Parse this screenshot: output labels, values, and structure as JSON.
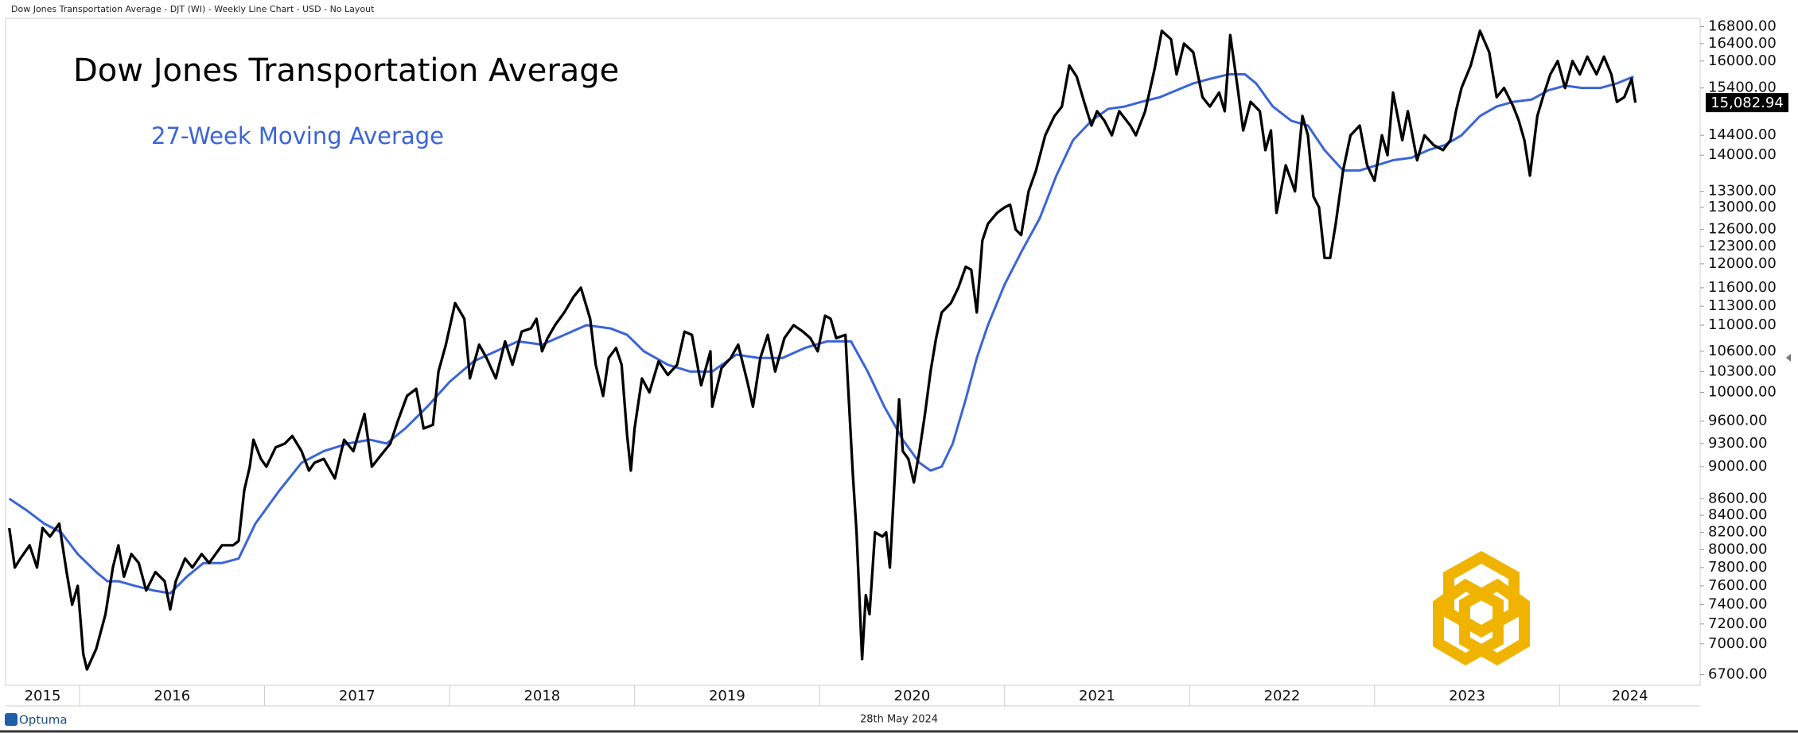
{
  "chart_data": {
    "type": "line",
    "title": "Dow Jones Transportation Average - DJT (WI) - Weekly Line Chart - USD - No Layout",
    "date_label": "28th May 2024",
    "brand": "Optuma",
    "log_y": true,
    "grid": false,
    "xlim": [
      2015.6,
      2024.76
    ],
    "xticks": [
      2015,
      2016,
      2017,
      2018,
      2019,
      2020,
      2021,
      2022,
      2023,
      2024
    ],
    "ylim": [
      6600,
      17000
    ],
    "yticks": [
      {
        "value": 6700,
        "label": "6700.00"
      },
      {
        "value": 7000,
        "label": "7000.00"
      },
      {
        "value": 7200,
        "label": "7200.00"
      },
      {
        "value": 7400,
        "label": "7400.00"
      },
      {
        "value": 7600,
        "label": "7600.00"
      },
      {
        "value": 7800,
        "label": "7800.00"
      },
      {
        "value": 8000,
        "label": "8000.00"
      },
      {
        "value": 8200,
        "label": "8200.00"
      },
      {
        "value": 8400,
        "label": "8400.00"
      },
      {
        "value": 8600,
        "label": "8600.00"
      },
      {
        "value": 9000,
        "label": "9000.00"
      },
      {
        "value": 9300,
        "label": "9300.00"
      },
      {
        "value": 9600,
        "label": "9600.00"
      },
      {
        "value": 10000,
        "label": "10000.00"
      },
      {
        "value": 10300,
        "label": "10300.00"
      },
      {
        "value": 10600,
        "label": "10600.00"
      },
      {
        "value": 11000,
        "label": "11000.00"
      },
      {
        "value": 11300,
        "label": "11300.00"
      },
      {
        "value": 11600,
        "label": "11600.00"
      },
      {
        "value": 12000,
        "label": "12000.00"
      },
      {
        "value": 12300,
        "label": "12300.00"
      },
      {
        "value": 12600,
        "label": "12600.00"
      },
      {
        "value": 13000,
        "label": "13000.00"
      },
      {
        "value": 13300,
        "label": "13300.00"
      },
      {
        "value": 14000,
        "label": "14000.00"
      },
      {
        "value": 14400,
        "label": "14400.00"
      },
      {
        "value": 15400,
        "label": "15400.00"
      },
      {
        "value": 16000,
        "label": "16000.00"
      },
      {
        "value": 16400,
        "label": "16400.00"
      },
      {
        "value": 16800,
        "label": "16800.00"
      }
    ],
    "last_value": {
      "value": 15082.94,
      "label": "15,082.94"
    },
    "series": [
      {
        "name": "Dow Jones Transportation Average",
        "color": "#000000",
        "x": [
          2015.62,
          2015.65,
          2015.68,
          2015.73,
          2015.77,
          2015.8,
          2015.84,
          2015.89,
          2015.93,
          2015.96,
          2015.99,
          2016.02,
          2016.04,
          2016.09,
          2016.14,
          2016.18,
          2016.21,
          2016.24,
          2016.28,
          2016.32,
          2016.36,
          2016.41,
          2016.46,
          2016.49,
          2016.52,
          2016.57,
          2016.61,
          2016.66,
          2016.7,
          2016.77,
          2016.83,
          2016.86,
          2016.89,
          2016.92,
          2016.94,
          2016.98,
          2017.01,
          2017.06,
          2017.11,
          2017.15,
          2017.2,
          2017.24,
          2017.27,
          2017.32,
          2017.38,
          2017.43,
          2017.48,
          2017.54,
          2017.58,
          2017.63,
          2017.68,
          2017.72,
          2017.77,
          2017.82,
          2017.86,
          2017.91,
          2017.94,
          2017.98,
          2018.03,
          2018.08,
          2018.11,
          2018.16,
          2018.2,
          2018.25,
          2018.3,
          2018.34,
          2018.39,
          2018.44,
          2018.47,
          2018.5,
          2018.53,
          2018.57,
          2018.62,
          2018.67,
          2018.71,
          2018.76,
          2018.79,
          2018.83,
          2018.86,
          2018.9,
          2018.93,
          2018.96,
          2018.98,
          2019.0,
          2019.04,
          2019.08,
          2019.13,
          2019.18,
          2019.23,
          2019.27,
          2019.31,
          2019.36,
          2019.41,
          2019.42,
          2019.47,
          2019.52,
          2019.56,
          2019.61,
          2019.64,
          2019.68,
          2019.72,
          2019.76,
          2019.81,
          2019.86,
          2019.91,
          2019.95,
          2019.99,
          2020.03,
          2020.06,
          2020.09,
          2020.14,
          2020.15,
          2020.18,
          2020.2,
          2020.23,
          2020.25,
          2020.27,
          2020.3,
          2020.34,
          2020.36,
          2020.38,
          2020.4,
          2020.43,
          2020.45,
          2020.48,
          2020.51,
          2020.54,
          2020.57,
          2020.6,
          2020.63,
          2020.66,
          2020.71,
          2020.75,
          2020.79,
          2020.82,
          2020.85,
          2020.88,
          2020.91,
          2020.96,
          2021.0,
          2021.03,
          2021.06,
          2021.09,
          2021.13,
          2021.17,
          2021.22,
          2021.27,
          2021.31,
          2021.35,
          2021.39,
          2021.43,
          2021.47,
          2021.5,
          2021.54,
          2021.58,
          2021.62,
          2021.68,
          2021.71,
          2021.76,
          2021.81,
          2021.85,
          2021.9,
          2021.93,
          2021.97,
          2022.02,
          2022.07,
          2022.11,
          2022.16,
          2022.19,
          2022.22,
          2022.26,
          2022.29,
          2022.33,
          2022.38,
          2022.41,
          2022.44,
          2022.47,
          2022.52,
          2022.57,
          2022.61,
          2022.64,
          2022.67,
          2022.7,
          2022.73,
          2022.76,
          2022.79,
          2022.83,
          2022.87,
          2022.92,
          2022.96,
          2023.0,
          2023.04,
          2023.07,
          2023.1,
          2023.15,
          2023.18,
          2023.23,
          2023.27,
          2023.32,
          2023.37,
          2023.41,
          2023.44,
          2023.47,
          2023.52,
          2023.57,
          2023.62,
          2023.66,
          2023.7,
          2023.75,
          2023.78,
          2023.81,
          2023.84,
          2023.88,
          2023.91,
          2023.95,
          2023.99,
          2024.03,
          2024.07,
          2024.11,
          2024.15,
          2024.2,
          2024.24,
          2024.28,
          2024.31,
          2024.35,
          2024.39,
          2024.41
        ],
        "values": [
          8250,
          7800,
          7900,
          8050,
          7800,
          8250,
          8150,
          8300,
          7750,
          7400,
          7600,
          6900,
          6750,
          6950,
          7300,
          7800,
          8050,
          7700,
          7950,
          7850,
          7550,
          7750,
          7650,
          7350,
          7650,
          7900,
          7800,
          7950,
          7850,
          8050,
          8050,
          8100,
          8700,
          9000,
          9350,
          9100,
          9000,
          9250,
          9300,
          9400,
          9200,
          8950,
          9050,
          9100,
          8850,
          9350,
          9200,
          9700,
          9000,
          9150,
          9300,
          9600,
          9950,
          10050,
          9500,
          9550,
          10300,
          10700,
          11350,
          11100,
          10200,
          10700,
          10500,
          10200,
          10750,
          10400,
          10900,
          10950,
          11100,
          10600,
          10800,
          11000,
          11200,
          11450,
          11600,
          11100,
          10400,
          9950,
          10500,
          10650,
          10400,
          9400,
          8950,
          9500,
          10200,
          10000,
          10450,
          10250,
          10400,
          10900,
          10850,
          10100,
          10600,
          9800,
          10350,
          10500,
          10700,
          10150,
          9800,
          10500,
          10850,
          10300,
          10800,
          11000,
          10900,
          10800,
          10600,
          11150,
          11100,
          10800,
          10850,
          10300,
          8900,
          8200,
          6850,
          7500,
          7300,
          8200,
          8150,
          8200,
          7800,
          8600,
          9900,
          9200,
          9100,
          8800,
          9200,
          9700,
          10300,
          10800,
          11200,
          11350,
          11600,
          11950,
          11900,
          11200,
          12400,
          12700,
          12900,
          13000,
          13050,
          12600,
          12500,
          13300,
          13700,
          14400,
          14800,
          15000,
          15900,
          15650,
          15100,
          14600,
          14900,
          14700,
          14400,
          14900,
          14600,
          14400,
          14900,
          15800,
          16700,
          16500,
          15700,
          16400,
          16200,
          15200,
          15000,
          15300,
          14900,
          16600,
          15400,
          14500,
          15100,
          14900,
          14100,
          14500,
          12900,
          13800,
          13300,
          14800,
          14400,
          13200,
          13000,
          12100,
          12100,
          12700,
          13700,
          14400,
          14600,
          13800,
          13500,
          14400,
          14000,
          15300,
          14300,
          14900,
          13900,
          14400,
          14200,
          14100,
          14300,
          14900,
          15400,
          15900,
          16700,
          16200,
          15200,
          15400,
          15000,
          14700,
          14300,
          13600,
          14800,
          15200,
          15700,
          16000,
          15400,
          16000,
          15700,
          16100,
          15700,
          16100,
          15700,
          15100,
          15200,
          15600,
          15082.94
        ]
      },
      {
        "name": "27-Week Moving Average",
        "color": "#3b64d9",
        "x": [
          2015.62,
          2015.72,
          2015.81,
          2015.9,
          2015.99,
          2016.09,
          2016.15,
          2016.21,
          2016.3,
          2016.4,
          2016.49,
          2016.58,
          2016.67,
          2016.77,
          2016.86,
          2016.95,
          2017.08,
          2017.2,
          2017.32,
          2017.45,
          2017.57,
          2017.66,
          2017.76,
          2017.88,
          2018.0,
          2018.13,
          2018.25,
          2018.37,
          2018.5,
          2018.62,
          2018.74,
          2018.87,
          2018.96,
          2019.05,
          2019.18,
          2019.3,
          2019.42,
          2019.55,
          2019.67,
          2019.8,
          2019.92,
          2020.04,
          2020.17,
          2020.26,
          2020.35,
          2020.45,
          2020.54,
          2020.6,
          2020.66,
          2020.72,
          2020.79,
          2020.85,
          2020.91,
          2021.0,
          2021.09,
          2021.19,
          2021.28,
          2021.37,
          2021.47,
          2021.56,
          2021.65,
          2021.74,
          2021.84,
          2021.93,
          2022.02,
          2022.11,
          2022.21,
          2022.3,
          2022.36,
          2022.45,
          2022.55,
          2022.64,
          2022.73,
          2022.83,
          2022.92,
          2023.01,
          2023.1,
          2023.2,
          2023.29,
          2023.38,
          2023.47,
          2023.57,
          2023.66,
          2023.75,
          2023.85,
          2023.94,
          2024.03,
          2024.12,
          2024.22,
          2024.31,
          2024.4
        ],
        "values": [
          8600,
          8450,
          8300,
          8200,
          7950,
          7750,
          7650,
          7650,
          7600,
          7550,
          7520,
          7700,
          7850,
          7850,
          7900,
          8300,
          8700,
          9050,
          9200,
          9300,
          9350,
          9300,
          9500,
          9800,
          10150,
          10450,
          10600,
          10750,
          10700,
          10850,
          11000,
          10950,
          10850,
          10600,
          10400,
          10300,
          10300,
          10550,
          10500,
          10500,
          10650,
          10750,
          10750,
          10300,
          9800,
          9350,
          9050,
          8950,
          9000,
          9300,
          9900,
          10500,
          11000,
          11650,
          12200,
          12800,
          13600,
          14300,
          14700,
          14950,
          15000,
          15100,
          15200,
          15350,
          15500,
          15600,
          15700,
          15700,
          15500,
          15000,
          14700,
          14600,
          14100,
          13700,
          13700,
          13800,
          13900,
          13950,
          14100,
          14200,
          14400,
          14800,
          15000,
          15100,
          15150,
          15350,
          15450,
          15400,
          15400,
          15500,
          15650
        ]
      }
    ]
  }
}
